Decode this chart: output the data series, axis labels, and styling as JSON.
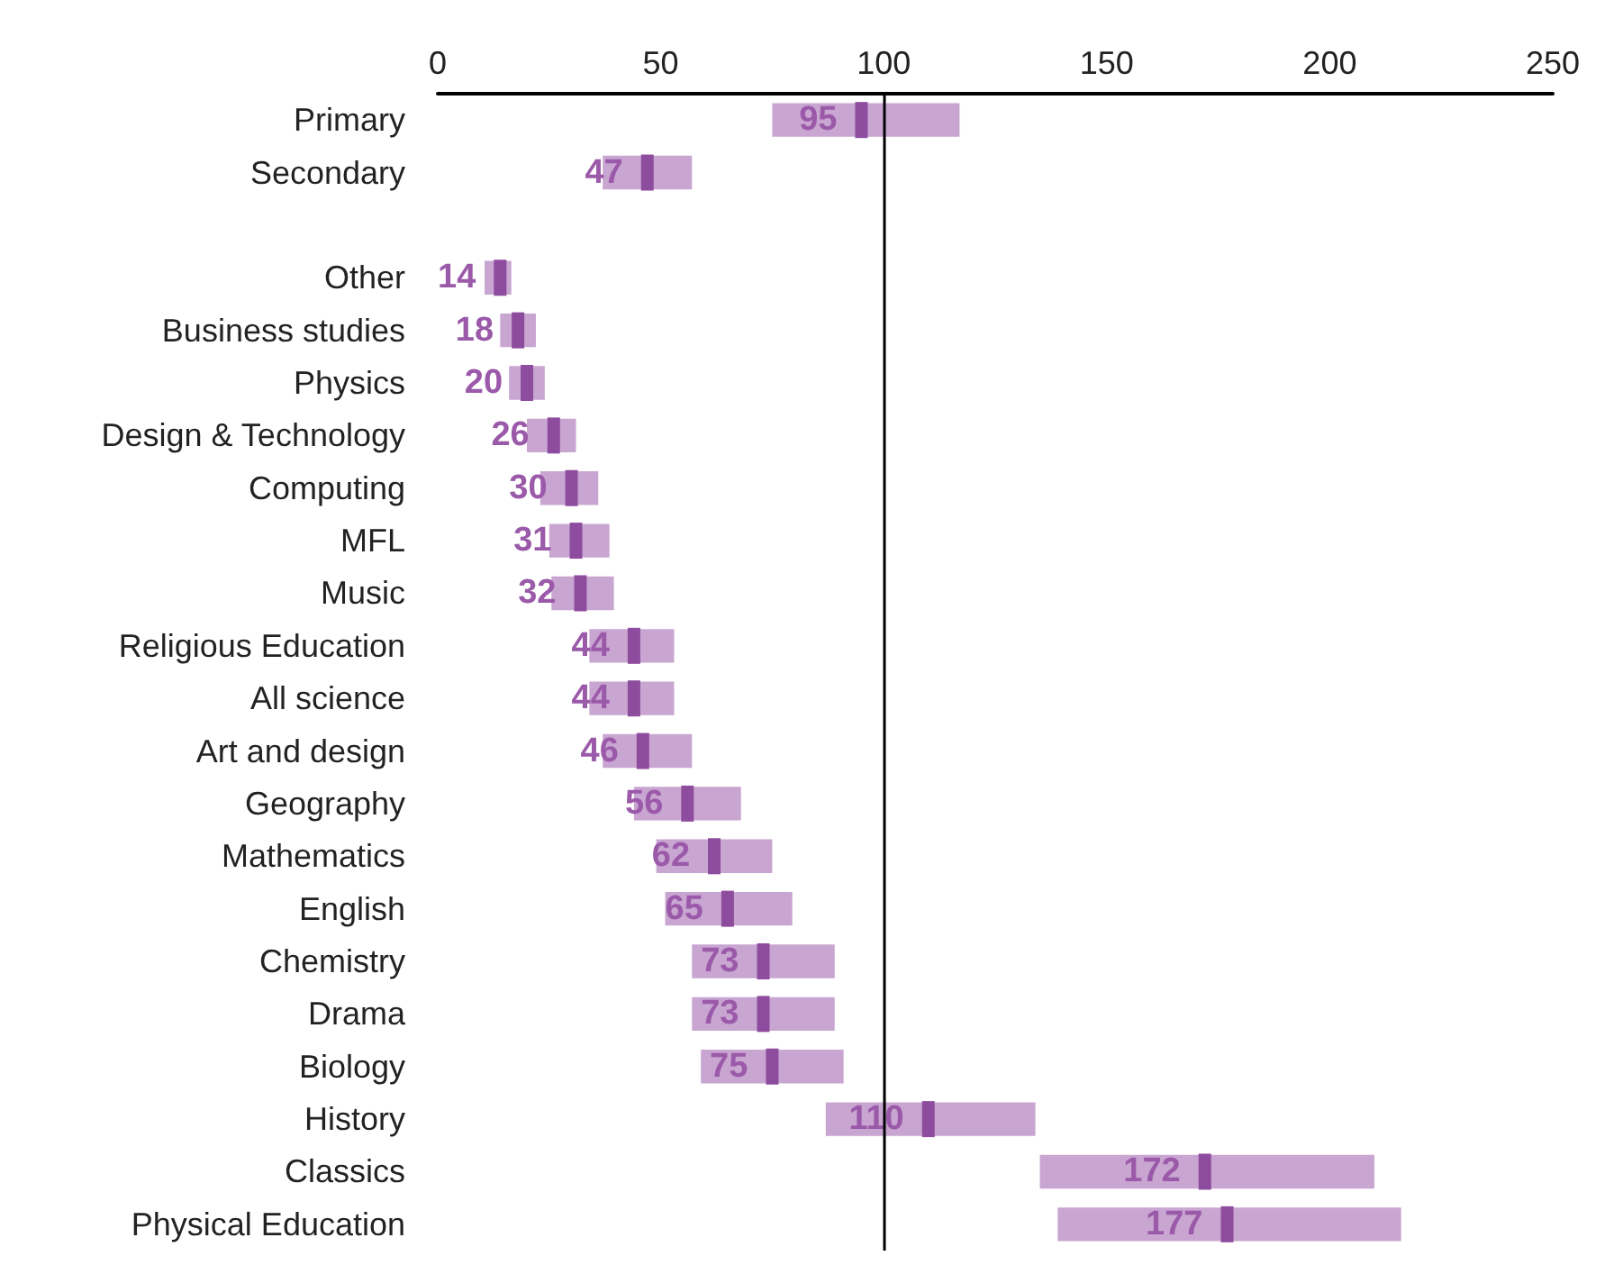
{
  "chart_data": {
    "type": "bar",
    "orientation": "horizontal",
    "categories": [
      "Primary",
      "Secondary",
      null,
      "Other",
      "Business studies",
      "Physics",
      "Design & Technology",
      "Computing",
      "MFL",
      "Music",
      "Religious Education",
      "All science",
      "Art and design",
      "Geography",
      "Mathematics",
      "English",
      "Chemistry",
      "Drama",
      "Biology",
      "History",
      "Classics",
      "Physical Education"
    ],
    "series": [
      {
        "color": "#c9a5d1",
        "base": [
          75,
          37,
          null,
          10.5,
          14,
          16,
          20,
          23,
          25,
          25.5,
          34,
          34,
          37,
          44,
          49,
          51,
          57,
          57,
          59,
          87,
          135,
          139
        ],
        "values": [
          42,
          20,
          null,
          6,
          8,
          8,
          11,
          13,
          13.5,
          14,
          19,
          19,
          20,
          24,
          26,
          28.5,
          32,
          32,
          32,
          47,
          75,
          77
        ]
      },
      {
        "type": "scatter",
        "color": "#8e4c9e",
        "marker": "square",
        "values": [
          95,
          47,
          null,
          14,
          18,
          20,
          26,
          30,
          31,
          32,
          44,
          44,
          46,
          56,
          62,
          65,
          73,
          73,
          75,
          110,
          172,
          177
        ],
        "value_labels": [
          "95",
          "47",
          null,
          "14",
          "18",
          "20",
          "26",
          "30",
          "31",
          "32",
          "44",
          "44",
          "46",
          "56",
          "62",
          "65",
          "73",
          "73",
          "75",
          "110",
          "172",
          "177"
        ]
      }
    ],
    "xlim": [
      0,
      250
    ],
    "xticks": [
      0,
      50,
      100,
      150,
      200,
      250
    ],
    "ref_lines": [
      {
        "axis": "x",
        "value": 100,
        "color": "#000000"
      }
    ]
  }
}
